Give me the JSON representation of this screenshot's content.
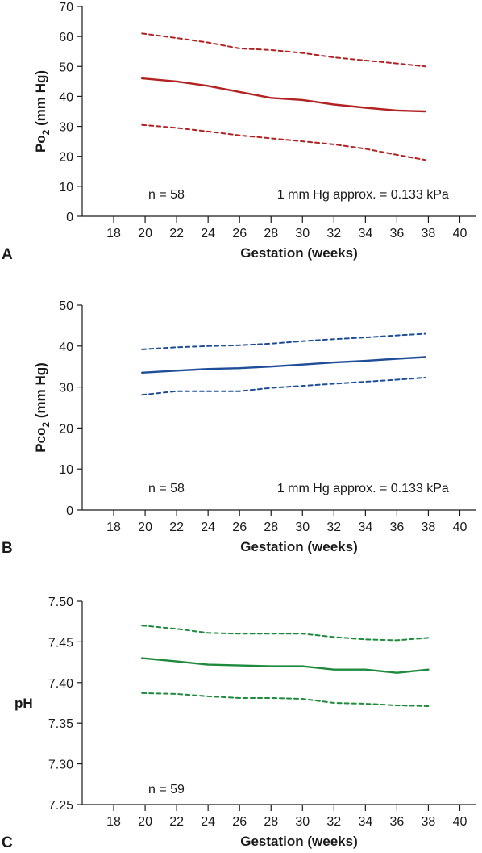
{
  "chart_data": [
    {
      "type": "line",
      "panel_label": "A",
      "xlabel": "Gestation (weeks)",
      "ylabel_main": "Po",
      "ylabel_sub": "2",
      "ylabel_unit": " (mm Hg)",
      "xlim": [
        16,
        41
      ],
      "ylim": [
        0,
        70
      ],
      "xticks": [
        18,
        20,
        22,
        24,
        26,
        28,
        30,
        32,
        34,
        36,
        38,
        40
      ],
      "yticks": [
        0,
        10,
        20,
        30,
        40,
        50,
        60,
        70
      ],
      "y_decimals": 0,
      "color": "#b22222",
      "annotations": [
        {
          "text": "n = 58",
          "x": 20.2,
          "y": 7.5,
          "anchor": "start"
        },
        {
          "text": "1 mm Hg approx. = 0.133 kPa",
          "x": 39.3,
          "y": 7.5,
          "anchor": "end"
        }
      ],
      "series": [
        {
          "style": "dashed",
          "points": [
            [
              19.8,
              61
            ],
            [
              22,
              59.5
            ],
            [
              24,
              58
            ],
            [
              26,
              56
            ],
            [
              28,
              55.5
            ],
            [
              30,
              54.5
            ],
            [
              32,
              53
            ],
            [
              34,
              52
            ],
            [
              36,
              51
            ],
            [
              37.8,
              50
            ]
          ]
        },
        {
          "style": "solid",
          "points": [
            [
              19.8,
              46
            ],
            [
              22,
              45
            ],
            [
              24,
              43.5
            ],
            [
              26,
              41.5
            ],
            [
              28,
              39.5
            ],
            [
              30,
              38.8
            ],
            [
              32,
              37.3
            ],
            [
              34,
              36.2
            ],
            [
              36,
              35.3
            ],
            [
              37.8,
              35
            ]
          ]
        },
        {
          "style": "dashed",
          "points": [
            [
              19.8,
              30.5
            ],
            [
              22,
              29.5
            ],
            [
              24,
              28.3
            ],
            [
              26,
              27
            ],
            [
              28,
              26
            ],
            [
              30,
              25
            ],
            [
              32,
              24
            ],
            [
              34,
              22.5
            ],
            [
              36,
              20.5
            ],
            [
              37.8,
              18.8
            ]
          ]
        }
      ]
    },
    {
      "type": "line",
      "panel_label": "B",
      "xlabel": "Gestation (weeks)",
      "ylabel_main": "Pco",
      "ylabel_sub": "2",
      "ylabel_unit": " (mm Hg)",
      "xlim": [
        16,
        41
      ],
      "ylim": [
        0,
        50
      ],
      "xticks": [
        18,
        20,
        22,
        24,
        26,
        28,
        30,
        32,
        34,
        36,
        38,
        40
      ],
      "yticks": [
        0,
        10,
        20,
        30,
        40,
        50
      ],
      "y_decimals": 0,
      "color": "#1f4e99",
      "annotations": [
        {
          "text": "n = 58",
          "x": 20.2,
          "y": 5.5,
          "anchor": "start"
        },
        {
          "text": "1 mm Hg approx. = 0.133 kPa",
          "x": 39.3,
          "y": 5.5,
          "anchor": "end"
        }
      ],
      "series": [
        {
          "style": "dashed",
          "points": [
            [
              19.8,
              39.2
            ],
            [
              22,
              39.7
            ],
            [
              24,
              40
            ],
            [
              26,
              40.2
            ],
            [
              28,
              40.6
            ],
            [
              30,
              41.2
            ],
            [
              32,
              41.7
            ],
            [
              34,
              42.1
            ],
            [
              36,
              42.6
            ],
            [
              37.8,
              43
            ]
          ]
        },
        {
          "style": "solid",
          "points": [
            [
              19.8,
              33.5
            ],
            [
              22,
              34
            ],
            [
              24,
              34.4
            ],
            [
              26,
              34.6
            ],
            [
              28,
              35
            ],
            [
              30,
              35.5
            ],
            [
              32,
              36
            ],
            [
              34,
              36.4
            ],
            [
              36,
              36.9
            ],
            [
              37.8,
              37.3
            ]
          ]
        },
        {
          "style": "dashed",
          "points": [
            [
              19.8,
              28.1
            ],
            [
              22,
              29
            ],
            [
              24,
              29
            ],
            [
              26,
              29
            ],
            [
              28,
              29.8
            ],
            [
              30,
              30.3
            ],
            [
              32,
              30.8
            ],
            [
              34,
              31.3
            ],
            [
              36,
              31.8
            ],
            [
              37.8,
              32.3
            ]
          ]
        }
      ]
    },
    {
      "type": "line",
      "panel_label": "C",
      "xlabel": "Gestation (weeks)",
      "ylabel_main": "pH",
      "ylabel_sub": "",
      "ylabel_unit": "",
      "xlim": [
        16,
        41
      ],
      "ylim": [
        7.25,
        7.5
      ],
      "xticks": [
        18,
        20,
        22,
        24,
        26,
        28,
        30,
        32,
        34,
        36,
        38,
        40
      ],
      "yticks": [
        7.25,
        7.3,
        7.35,
        7.4,
        7.45,
        7.5
      ],
      "y_decimals": 2,
      "color": "#1e8a3c",
      "annotations": [
        {
          "text": "n = 59",
          "x": 20.2,
          "y": 7.27,
          "anchor": "start"
        }
      ],
      "series": [
        {
          "style": "dashed",
          "points": [
            [
              19.8,
              7.47
            ],
            [
              22,
              7.466
            ],
            [
              24,
              7.461
            ],
            [
              26,
              7.46
            ],
            [
              28,
              7.46
            ],
            [
              30,
              7.46
            ],
            [
              32,
              7.456
            ],
            [
              34,
              7.453
            ],
            [
              36,
              7.452
            ],
            [
              38,
              7.455
            ]
          ]
        },
        {
          "style": "solid",
          "points": [
            [
              19.8,
              7.43
            ],
            [
              22,
              7.426
            ],
            [
              24,
              7.422
            ],
            [
              26,
              7.421
            ],
            [
              28,
              7.42
            ],
            [
              30,
              7.42
            ],
            [
              32,
              7.416
            ],
            [
              34,
              7.416
            ],
            [
              36,
              7.412
            ],
            [
              38,
              7.416
            ]
          ]
        },
        {
          "style": "dashed",
          "points": [
            [
              19.8,
              7.387
            ],
            [
              22,
              7.386
            ],
            [
              24,
              7.383
            ],
            [
              26,
              7.381
            ],
            [
              28,
              7.381
            ],
            [
              30,
              7.38
            ],
            [
              32,
              7.375
            ],
            [
              34,
              7.374
            ],
            [
              36,
              7.372
            ],
            [
              38,
              7.371
            ]
          ]
        }
      ]
    }
  ]
}
